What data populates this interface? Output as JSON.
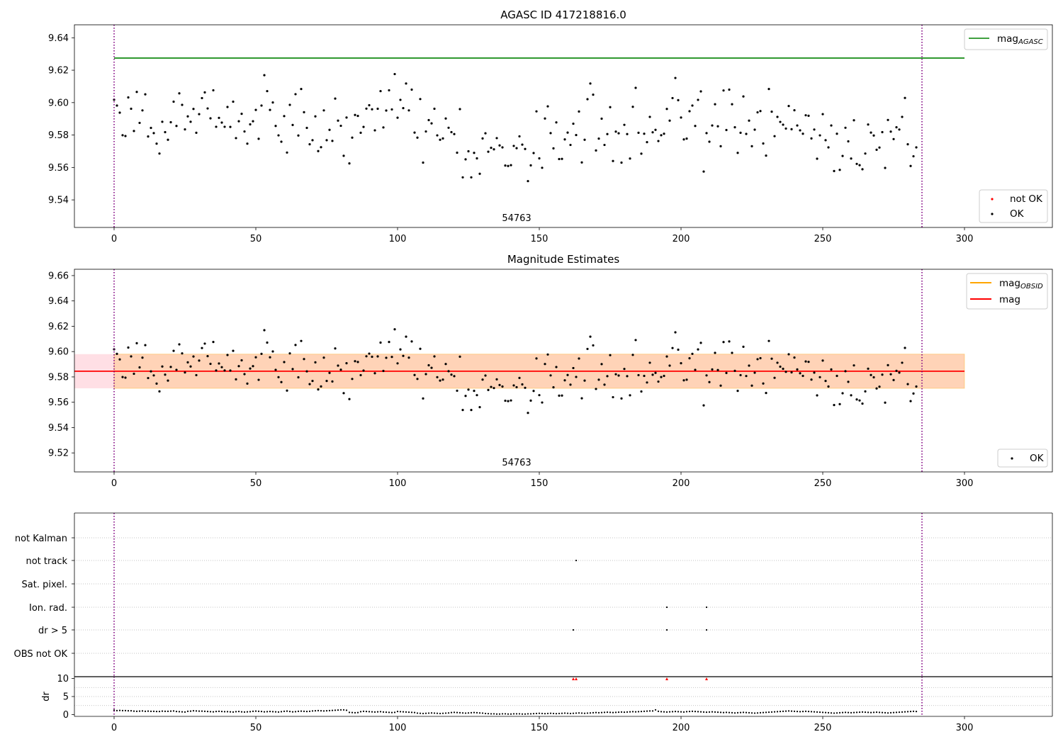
{
  "chart_data": [
    {
      "id": "agasc",
      "type": "scatter",
      "title": "AGASC ID 417218816.0",
      "xlim": [
        -14,
        331
      ],
      "ylim": [
        9.523,
        9.648
      ],
      "xticks": [
        0,
        50,
        100,
        150,
        200,
        250,
        300
      ],
      "yticks": [
        9.54,
        9.56,
        9.58,
        9.6,
        9.62,
        9.64
      ],
      "yticklabels": [
        "9.54",
        "9.56",
        "9.58",
        "9.60",
        "9.62",
        "9.64"
      ],
      "obs_boundaries": [
        0,
        285
      ],
      "obsid_label": "54763",
      "obsid_label_x": 142,
      "hline": {
        "name": "mag",
        "subscript": "AGASC",
        "y": 9.6275,
        "x": [
          0,
          300
        ],
        "color": "#008000"
      },
      "legends": [
        {
          "position": "top-right",
          "entries": [
            {
              "name": "mag",
              "subscript": "AGASC",
              "kind": "line",
              "color": "#008000"
            }
          ]
        },
        {
          "position": "bottom-right",
          "entries": [
            {
              "name": "not OK",
              "kind": "point",
              "color": "#ff0000"
            },
            {
              "name": "OK",
              "kind": "point",
              "color": "#000000"
            }
          ]
        }
      ]
    },
    {
      "id": "estimates",
      "type": "scatter",
      "title": "Magnitude Estimates",
      "xlim": [
        -14,
        331
      ],
      "ylim": [
        9.505,
        9.665
      ],
      "xticks": [
        0,
        50,
        100,
        150,
        200,
        250,
        300
      ],
      "yticks": [
        9.52,
        9.54,
        9.56,
        9.58,
        9.6,
        9.62,
        9.64,
        9.66
      ],
      "yticklabels": [
        "9.52",
        "9.54",
        "9.56",
        "9.58",
        "9.60",
        "9.62",
        "9.64",
        "9.66"
      ],
      "obs_boundaries": [
        0,
        285
      ],
      "obsid_label": "54763",
      "obsid_label_x": 142,
      "mag_band": {
        "x": [
          -14,
          300
        ],
        "y": [
          9.571,
          9.598
        ],
        "color": "#ffc0cb"
      },
      "mag_obsid_band": {
        "x": [
          0,
          300
        ],
        "y": [
          9.571,
          9.598
        ],
        "color": "#ffa500"
      },
      "mag_line": {
        "y": 9.5845,
        "x": [
          -14,
          300
        ],
        "color": "#ff0000"
      },
      "legends": [
        {
          "position": "top-right",
          "entries": [
            {
              "name": "mag",
              "subscript": "OBSID",
              "kind": "line",
              "color": "#ffa500"
            },
            {
              "name": "mag",
              "kind": "line",
              "color": "#ff0000"
            }
          ]
        },
        {
          "position": "bottom-right",
          "entries": [
            {
              "name": "OK",
              "kind": "point",
              "color": "#000000"
            }
          ]
        }
      ]
    },
    {
      "id": "flags",
      "type": "scatter",
      "xlim": [
        -14,
        331
      ],
      "xticks": [
        0,
        50,
        100,
        150,
        200,
        250,
        300
      ],
      "obs_boundaries": [
        0,
        285
      ],
      "rows": [
        "not Kalman",
        "not track",
        "Sat. pixel.",
        "Ion. rad.",
        "dr > 5",
        "OBS not OK"
      ],
      "flag_points": [
        {
          "row": "not track",
          "x": [
            163
          ]
        },
        {
          "row": "Ion. rad.",
          "x": [
            195,
            209
          ]
        },
        {
          "row": "dr > 5",
          "x": [
            162,
            195,
            209
          ]
        }
      ]
    },
    {
      "id": "dr",
      "type": "scatter",
      "ylabel": "dr",
      "xlim": [
        -14,
        331
      ],
      "ylim": [
        -0.5,
        10.5
      ],
      "xticks": [
        0,
        50,
        100,
        150,
        200,
        250,
        300
      ],
      "yticks": [
        0,
        5,
        10
      ],
      "yticklabels": [
        "0",
        "5",
        "10"
      ],
      "obs_boundaries": [
        0,
        285
      ],
      "clipped_points": {
        "x": [
          162,
          163,
          195,
          209
        ],
        "y": 9.9,
        "color": "#ff0000"
      }
    }
  ],
  "series_data": {
    "x_range": [
      0,
      285
    ],
    "mag": [
      9.6018,
      9.5982,
      9.5938,
      9.5799,
      9.5794,
      9.6032,
      9.5962,
      9.5825,
      9.6066,
      9.5875,
      9.5952,
      9.6051,
      9.5791,
      9.5844,
      9.5812,
      9.5747,
      9.5686,
      9.5882,
      9.5818,
      9.5771,
      9.5879,
      9.6006,
      9.5856,
      9.6057,
      9.5986,
      9.5835,
      9.5915,
      9.5882,
      9.5961,
      9.5814,
      9.5929,
      9.6028,
      9.6063,
      9.5964,
      9.5903,
      9.6076,
      9.5851,
      9.5906,
      9.5877,
      9.5851,
      9.5973,
      9.585,
      9.6006,
      9.5781,
      9.5885,
      9.5931,
      9.5822,
      9.5747,
      9.5866,
      9.5885,
      9.5955,
      9.5777,
      9.5982,
      9.6169,
      9.6071,
      9.5955,
      9.6001,
      9.5856,
      9.5798,
      9.5759,
      9.5917,
      9.5692,
      9.5986,
      9.5862,
      9.6052,
      9.5797,
      9.6084,
      9.5941,
      9.5844,
      9.5743,
      9.5768,
      9.5915,
      9.5701,
      9.5725,
      9.5952,
      9.5768,
      9.5832,
      9.5764,
      9.6025,
      9.5889,
      9.5857,
      9.5672,
      9.5908,
      9.5625,
      9.5784,
      9.5924,
      9.5918,
      9.5814,
      9.585,
      9.5963,
      9.5984,
      9.5959,
      9.5829,
      9.5962,
      9.6071,
      9.5847,
      9.5951,
      9.6076,
      9.5958,
      9.6176,
      9.5907,
      9.6017,
      9.5966,
      9.6118,
      9.5952,
      9.608,
      9.5815,
      9.5784,
      9.6022,
      9.563,
      9.5822,
      9.5892,
      9.5872,
      9.5962,
      9.5798,
      9.5771,
      9.5779,
      9.5902,
      9.5845,
      9.5818,
      9.5806,
      9.5691,
      9.596,
      9.5539,
      9.565,
      9.57,
      9.5539,
      9.569,
      9.5656,
      9.5561,
      9.5779,
      9.5811,
      9.5697,
      9.5721,
      9.5712,
      9.5781,
      9.5736,
      9.5724,
      9.5612,
      9.5609,
      9.5614,
      9.5733,
      9.5719,
      9.5792,
      9.5741,
      9.5714,
      9.5516,
      9.5613,
      9.5689,
      9.5946,
      9.5656,
      9.5598,
      9.5902,
      9.5977,
      9.5812,
      9.5718,
      9.5878,
      9.5652,
      9.5653,
      9.5773,
      9.5815,
      9.5739,
      9.587,
      9.58,
      9.5945,
      9.5631,
      9.5771,
      9.6021,
      9.6118,
      9.6049,
      9.5705,
      9.5778,
      9.5901,
      9.5739,
      9.5806,
      9.5972,
      9.564,
      9.5821,
      9.5811,
      9.563,
      9.5863,
      9.5806,
      9.5655,
      9.5974,
      9.6091,
      9.5814,
      9.5685,
      9.5808,
      9.5756,
      9.5912,
      9.5817,
      9.5832,
      9.5763,
      9.5799,
      9.5808,
      9.5961,
      9.5889,
      9.6028,
      9.6152,
      9.6015,
      9.5908,
      9.5773,
      9.5778,
      9.5947,
      9.5982,
      9.5856,
      9.6017,
      9.6069,
      9.5575,
      9.5812,
      9.5759,
      9.5859,
      9.599,
      9.5854,
      9.5731,
      9.6075,
      9.5831,
      9.608,
      9.599,
      9.5848,
      9.569,
      9.5814,
      9.6038,
      9.5807,
      9.5889,
      9.5731,
      9.5833,
      9.594,
      9.5948,
      9.5748,
      9.5673,
      9.6084,
      9.5944,
      9.5793,
      9.5912,
      9.5881,
      9.5864,
      9.584,
      9.5979,
      9.5836,
      9.5953,
      9.5859,
      9.5829,
      9.5808,
      9.5922,
      9.5919,
      9.5779,
      9.5834,
      9.5654,
      9.5798,
      9.5929,
      9.5768,
      9.5724,
      9.5859,
      9.5578,
      9.5808,
      9.5585,
      9.5671,
      9.5845,
      9.5761,
      9.5655,
      9.5891,
      9.5622,
      9.5614,
      9.5589,
      9.5686,
      9.5865,
      9.5815,
      9.5797,
      9.5709,
      9.5723,
      9.5818,
      9.5597,
      9.5893,
      9.5821,
      9.5775,
      9.5848,
      9.5834,
      9.5912,
      9.6029,
      9.5743,
      9.5609,
      9.5669,
      9.5724
    ],
    "dr": [
      1.25,
      1.1,
      1.15,
      1.1,
      1.1,
      1.05,
      1.05,
      0.95,
      0.9,
      0.95,
      1.0,
      0.9,
      0.95,
      0.9,
      0.9,
      0.85,
      0.85,
      0.95,
      0.9,
      0.9,
      0.95,
      1.0,
      0.85,
      0.8,
      0.75,
      0.7,
      0.9,
      0.95,
      1.05,
      1.0,
      0.95,
      0.95,
      0.9,
      0.85,
      0.8,
      0.75,
      0.85,
      0.9,
      0.85,
      0.8,
      0.8,
      0.75,
      0.7,
      0.8,
      0.85,
      0.75,
      0.7,
      0.75,
      0.8,
      0.9,
      0.95,
      0.9,
      0.85,
      0.75,
      0.8,
      0.85,
      0.8,
      0.75,
      0.7,
      0.8,
      0.9,
      0.95,
      0.85,
      0.75,
      0.8,
      0.9,
      0.95,
      0.9,
      0.85,
      0.9,
      1.0,
      1.05,
      1.1,
      1.05,
      1.0,
      1.05,
      1.1,
      1.15,
      1.2,
      1.25,
      1.3,
      1.3,
      1.2,
      0.6,
      0.55,
      0.5,
      0.55,
      0.8,
      0.9,
      0.85,
      0.8,
      0.75,
      0.7,
      0.75,
      0.8,
      0.7,
      0.65,
      0.6,
      0.55,
      0.6,
      0.85,
      0.8,
      0.75,
      0.7,
      0.65,
      0.6,
      0.55,
      0.4,
      0.35,
      0.3,
      0.35,
      0.4,
      0.45,
      0.4,
      0.35,
      0.3,
      0.35,
      0.4,
      0.45,
      0.55,
      0.6,
      0.55,
      0.5,
      0.45,
      0.4,
      0.45,
      0.5,
      0.55,
      0.5,
      0.45,
      0.4,
      0.3,
      0.25,
      0.2,
      0.2,
      0.15,
      0.15,
      0.2,
      0.2,
      0.15,
      0.15,
      0.2,
      0.2,
      0.2,
      0.15,
      0.15,
      0.2,
      0.2,
      0.25,
      0.3,
      0.35,
      0.3,
      0.25,
      0.3,
      0.35,
      0.3,
      0.25,
      0.3,
      0.35,
      0.4,
      0.35,
      0.3,
      0.35,
      0.4,
      0.45,
      0.4,
      0.35,
      0.4,
      0.45,
      0.5,
      0.55,
      0.5,
      0.55,
      0.6,
      0.65,
      0.6,
      0.55,
      0.6,
      0.65,
      0.7,
      0.65,
      0.7,
      0.75,
      0.8,
      0.75,
      0.8,
      0.85,
      0.9,
      0.95,
      1.0,
      1.0,
      1.3,
      0.9,
      0.8,
      0.75,
      0.7,
      0.75,
      0.8,
      0.85,
      0.8,
      0.75,
      0.7,
      0.8,
      0.85,
      0.9,
      0.85,
      0.8,
      0.75,
      0.7,
      0.65,
      0.7,
      0.75,
      0.7,
      0.65,
      0.6,
      0.55,
      0.6,
      0.55,
      0.5,
      0.45,
      0.5,
      0.55,
      0.6,
      0.55,
      0.5,
      0.45,
      0.4,
      0.45,
      0.5,
      0.55,
      0.6,
      0.65,
      0.7,
      0.75,
      0.8,
      0.85,
      0.9,
      0.95,
      1.0,
      0.95,
      0.9,
      0.85,
      0.8,
      0.85,
      0.9,
      0.85,
      0.8,
      0.75,
      0.7,
      0.65,
      0.6,
      0.55,
      0.5,
      0.45,
      0.4,
      0.45,
      0.5,
      0.55,
      0.6,
      0.55,
      0.5,
      0.55,
      0.6,
      0.65,
      0.7,
      0.65,
      0.6,
      0.55,
      0.6,
      0.65,
      0.6,
      0.55,
      0.5,
      0.45,
      0.5,
      0.55,
      0.6,
      0.65,
      0.7,
      0.75,
      0.8,
      0.85,
      0.9,
      0.85,
      0.8,
      0.75,
      0.7,
      0.65,
      0.6,
      0.55,
      0.6,
      1.35,
      1.0
    ]
  }
}
